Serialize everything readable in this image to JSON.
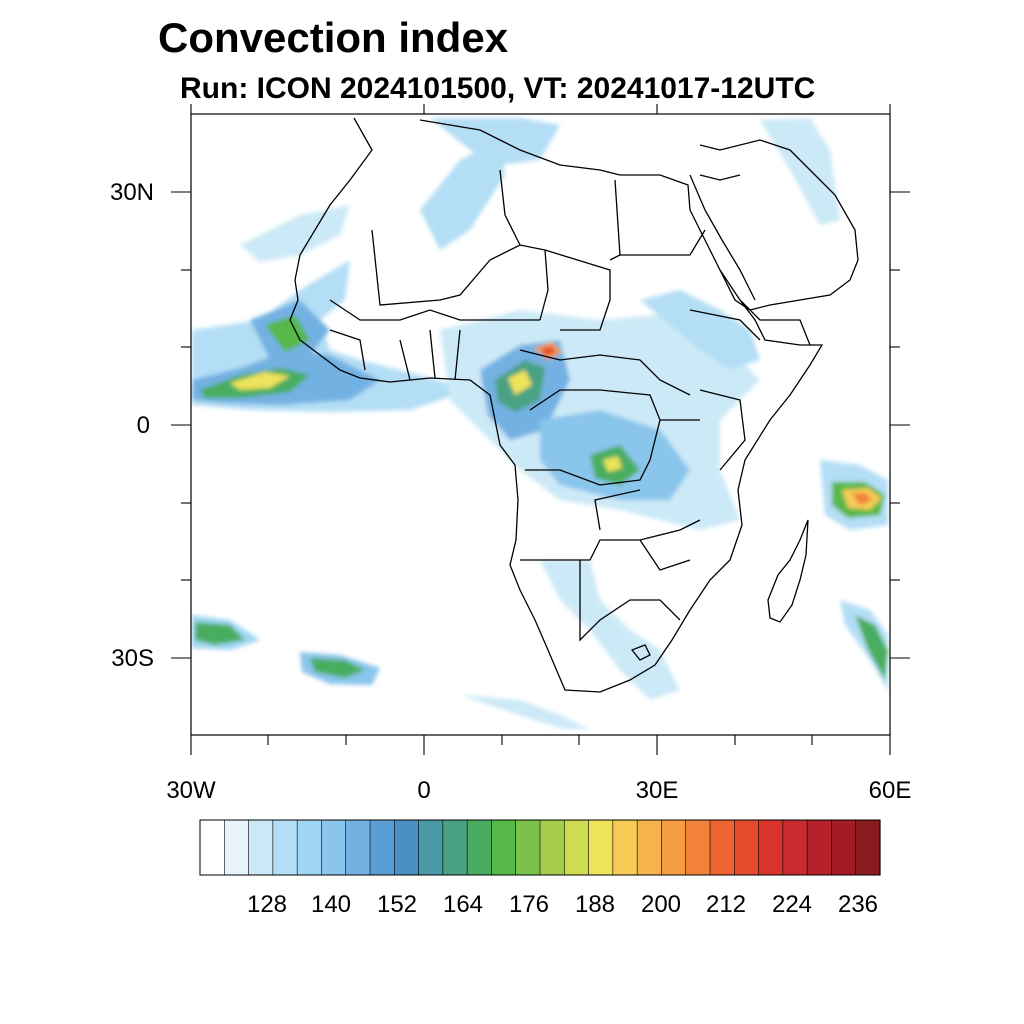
{
  "figure": {
    "title": "Convection index",
    "subtitle": "Run: ICON 2024101500,  VT: 20241017-12UTC"
  },
  "map": {
    "lon_range": [
      -30,
      60
    ],
    "lat_range": [
      -40,
      40
    ],
    "lon_ticks": [
      {
        "value": -30,
        "label": "30W"
      },
      {
        "value": 0,
        "label": "0"
      },
      {
        "value": 30,
        "label": "30E"
      },
      {
        "value": 60,
        "label": "60E"
      }
    ],
    "lat_ticks": [
      {
        "value": 30,
        "label": "30N"
      },
      {
        "value": 0,
        "label": "0"
      },
      {
        "value": -30,
        "label": "30S"
      }
    ]
  },
  "colorbar": {
    "labels": [
      "128",
      "140",
      "152",
      "164",
      "176",
      "188",
      "200",
      "212",
      "224",
      "236"
    ],
    "colors": [
      "#ffffff",
      "#e8f4fb",
      "#cce9f7",
      "#b4def5",
      "#9fd6f3",
      "#8ac5ec",
      "#73b1e2",
      "#5b9dd5",
      "#4b90c2",
      "#4a9aa6",
      "#48a282",
      "#49ad60",
      "#56b848",
      "#7ac24a",
      "#a5cd4b",
      "#cddc50",
      "#eee35a",
      "#f7cb55",
      "#f6b24b",
      "#f59b41",
      "#f2813a",
      "#ec6532",
      "#e44b2d",
      "#d9332c",
      "#c92a2f",
      "#b6222c",
      "#a31c25",
      "#8a1a1e"
    ]
  }
}
